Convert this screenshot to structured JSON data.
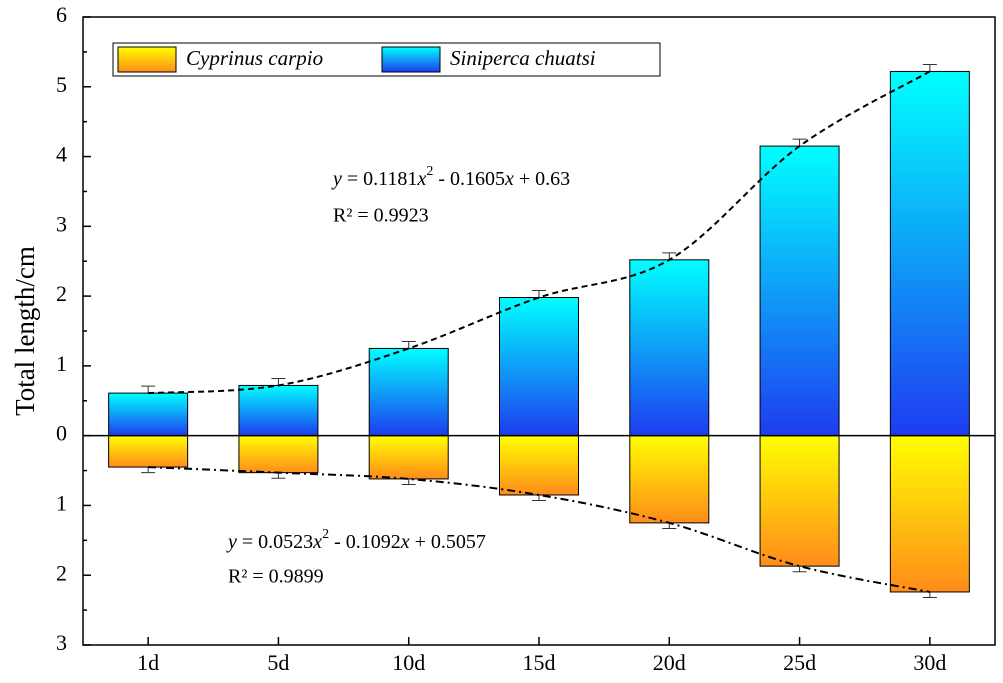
{
  "chart_data": {
    "type": "bar",
    "y_label": "Total length/cm",
    "categories": [
      "1d",
      "5d",
      "10d",
      "15d",
      "20d",
      "25d",
      "30d"
    ],
    "series": [
      {
        "name": "Cyprinus carpio",
        "color": [
          "#ffff00",
          "#ff8c1a"
        ],
        "values": [
          -0.45,
          -0.53,
          -0.62,
          -0.85,
          -1.25,
          -1.87,
          -2.24
        ],
        "errors": [
          0.08,
          0.08,
          0.08,
          0.08,
          0.08,
          0.08,
          0.08
        ]
      },
      {
        "name": "Siniperca chuatsi",
        "color": [
          "#00ffff",
          "#1e3cf0"
        ],
        "values": [
          0.61,
          0.72,
          1.25,
          1.98,
          2.52,
          4.15,
          5.22
        ],
        "errors": [
          0.1,
          0.1,
          0.1,
          0.1,
          0.1,
          0.1,
          0.1
        ]
      }
    ],
    "fits": [
      {
        "equation": [
          "y",
          " = 0.0523",
          "x",
          "2",
          " - 0.1092",
          "x",
          " + 0.5057"
        ],
        "r2": "R² = 0.9899"
      },
      {
        "equation": [
          "y",
          " = 0.1181",
          "x",
          "2",
          " - 0.1605",
          "x",
          " + 0.63"
        ],
        "r2": "R² = 0.9923"
      }
    ],
    "ylim": [
      -3,
      6
    ],
    "yticks": [
      {
        "value": -3,
        "label": "3"
      },
      {
        "value": -2,
        "label": "2"
      },
      {
        "value": -1,
        "label": "1"
      },
      0,
      1,
      2,
      3,
      4,
      5,
      6
    ],
    "legend": "top-left"
  }
}
